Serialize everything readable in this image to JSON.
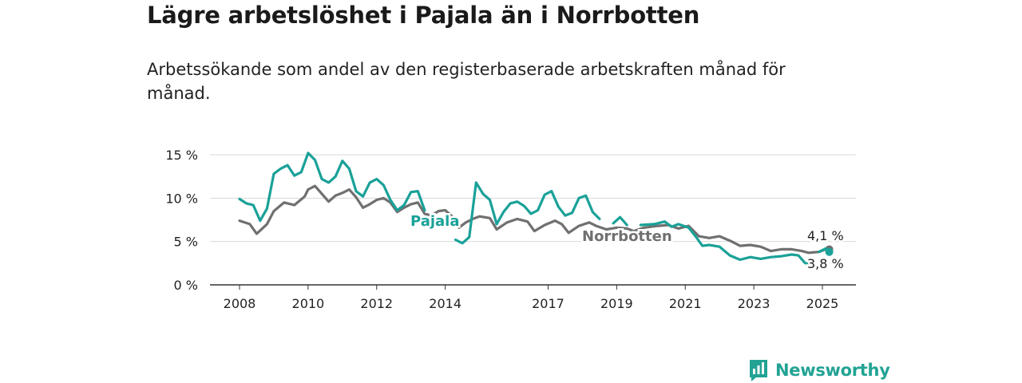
{
  "title": "Lägre arbetslöshet i Pajala än i Norrbotten",
  "subtitle": "Arbetssökande som andel av den registerbaserade arbetskraften månad för månad.",
  "brand": {
    "name": "Newsworthy",
    "color": "#22a394"
  },
  "chart_data": {
    "type": "line",
    "title": "",
    "xlabel": "",
    "ylabel": "",
    "x_ticks": [
      2008,
      2010,
      2012,
      2014,
      2017,
      2019,
      2021,
      2023,
      2025
    ],
    "x_tick_positions": [
      2008.0,
      2010.0,
      2012.0,
      2014.0,
      2017.0,
      2019.0,
      2021.0,
      2023.0,
      2025.0
    ],
    "y_ticks": [
      0,
      5,
      10,
      15
    ],
    "y_tick_labels": [
      "0 %",
      "5 %",
      "10 %",
      "15 %"
    ],
    "ylim": [
      0,
      15
    ],
    "xlim": [
      2007.2,
      2026.0
    ],
    "grid": true,
    "legend": "inline labels",
    "series": [
      {
        "name": "Pajala",
        "color": "#1aa198",
        "end_label": "3,8 %",
        "points": [
          [
            2008.0,
            9.9
          ],
          [
            2008.2,
            9.4
          ],
          [
            2008.4,
            9.2
          ],
          [
            2008.6,
            7.4
          ],
          [
            2008.8,
            8.8
          ],
          [
            2009.0,
            12.8
          ],
          [
            2009.2,
            13.4
          ],
          [
            2009.4,
            13.8
          ],
          [
            2009.6,
            12.6
          ],
          [
            2009.8,
            13.0
          ],
          [
            2010.0,
            15.2
          ],
          [
            2010.2,
            14.4
          ],
          [
            2010.4,
            12.2
          ],
          [
            2010.6,
            11.8
          ],
          [
            2010.8,
            12.5
          ],
          [
            2011.0,
            14.3
          ],
          [
            2011.2,
            13.4
          ],
          [
            2011.4,
            10.8
          ],
          [
            2011.6,
            10.2
          ],
          [
            2011.8,
            11.8
          ],
          [
            2012.0,
            12.2
          ],
          [
            2012.2,
            11.5
          ],
          [
            2012.4,
            9.8
          ],
          [
            2012.6,
            8.6
          ],
          [
            2012.8,
            9.2
          ],
          [
            2013.0,
            10.7
          ],
          [
            2013.2,
            10.8
          ],
          [
            2013.4,
            8.6
          ],
          [
            null,
            null
          ],
          [
            2014.3,
            5.2
          ],
          [
            2014.5,
            4.8
          ],
          [
            2014.7,
            5.5
          ],
          [
            2014.9,
            11.8
          ],
          [
            2015.1,
            10.5
          ],
          [
            2015.3,
            9.8
          ],
          [
            2015.5,
            7.0
          ],
          [
            2015.7,
            8.4
          ],
          [
            2015.9,
            9.4
          ],
          [
            2016.1,
            9.6
          ],
          [
            2016.3,
            9.1
          ],
          [
            2016.5,
            8.2
          ],
          [
            2016.7,
            8.6
          ],
          [
            2016.9,
            10.4
          ],
          [
            2017.1,
            10.8
          ],
          [
            2017.3,
            9.0
          ],
          [
            2017.5,
            8.0
          ],
          [
            2017.7,
            8.3
          ],
          [
            2017.9,
            10.0
          ],
          [
            2018.1,
            10.3
          ],
          [
            2018.3,
            8.4
          ],
          [
            2018.5,
            7.6
          ],
          [
            null,
            null
          ],
          [
            2018.9,
            7.1
          ],
          [
            2019.1,
            7.8
          ],
          [
            2019.3,
            6.9
          ],
          [
            null,
            null
          ],
          [
            2019.7,
            6.9
          ],
          [
            2020.1,
            7.0
          ],
          [
            2020.4,
            7.3
          ],
          [
            2020.6,
            6.7
          ],
          [
            2020.8,
            7.0
          ],
          [
            2021.1,
            6.6
          ],
          [
            2021.3,
            5.6
          ],
          [
            2021.5,
            4.5
          ],
          [
            2021.7,
            4.6
          ],
          [
            2022.0,
            4.4
          ],
          [
            2022.3,
            3.4
          ],
          [
            2022.6,
            2.9
          ],
          [
            2022.9,
            3.2
          ],
          [
            2023.2,
            3.0
          ],
          [
            2023.5,
            3.2
          ],
          [
            2023.8,
            3.3
          ],
          [
            2024.1,
            3.5
          ],
          [
            2024.3,
            3.4
          ],
          [
            2024.5,
            2.5
          ],
          [
            2024.7,
            2.4
          ],
          [
            null,
            null
          ],
          [
            2024.9,
            3.8
          ],
          [
            2025.1,
            4.2
          ],
          [
            2025.2,
            3.8
          ]
        ]
      },
      {
        "name": "Norrbotten",
        "color": "#707070",
        "end_label": "4,1 %",
        "points": [
          [
            2008.0,
            7.4
          ],
          [
            2008.3,
            7.0
          ],
          [
            2008.5,
            5.9
          ],
          [
            2008.8,
            7.0
          ],
          [
            2009.0,
            8.5
          ],
          [
            2009.3,
            9.5
          ],
          [
            2009.6,
            9.2
          ],
          [
            2009.9,
            10.2
          ],
          [
            2010.0,
            11.0
          ],
          [
            2010.2,
            11.4
          ],
          [
            2010.4,
            10.5
          ],
          [
            2010.6,
            9.6
          ],
          [
            2010.8,
            10.3
          ],
          [
            2011.0,
            10.6
          ],
          [
            2011.2,
            11.0
          ],
          [
            2011.4,
            10.1
          ],
          [
            2011.6,
            8.9
          ],
          [
            2011.8,
            9.3
          ],
          [
            2012.0,
            9.8
          ],
          [
            2012.2,
            10.0
          ],
          [
            2012.4,
            9.5
          ],
          [
            2012.6,
            8.4
          ],
          [
            2012.8,
            8.9
          ],
          [
            2013.0,
            9.3
          ],
          [
            2013.2,
            9.5
          ],
          [
            2013.4,
            8.2
          ],
          [
            2013.6,
            8.0
          ],
          [
            2013.8,
            8.5
          ],
          [
            2014.0,
            8.6
          ],
          [
            2014.2,
            7.9
          ],
          [
            2014.4,
            6.6
          ],
          [
            2014.6,
            7.2
          ],
          [
            2014.8,
            7.6
          ],
          [
            2015.0,
            7.9
          ],
          [
            2015.3,
            7.7
          ],
          [
            2015.5,
            6.4
          ],
          [
            2015.8,
            7.2
          ],
          [
            2016.1,
            7.6
          ],
          [
            2016.4,
            7.3
          ],
          [
            2016.6,
            6.2
          ],
          [
            2016.9,
            6.9
          ],
          [
            2017.2,
            7.4
          ],
          [
            2017.4,
            7.0
          ],
          [
            2017.6,
            6.0
          ],
          [
            2017.9,
            6.8
          ],
          [
            2018.2,
            7.2
          ],
          [
            2018.4,
            6.8
          ],
          [
            2018.7,
            6.4
          ],
          [
            2019.0,
            6.6
          ],
          [
            2019.3,
            6.5
          ],
          [
            2019.5,
            6.2
          ],
          [
            2019.8,
            6.6
          ],
          [
            2020.2,
            6.8
          ],
          [
            2020.5,
            6.9
          ],
          [
            2020.8,
            6.5
          ],
          [
            2021.1,
            6.8
          ],
          [
            2021.4,
            5.6
          ],
          [
            2021.7,
            5.4
          ],
          [
            2022.0,
            5.6
          ],
          [
            2022.3,
            5.1
          ],
          [
            2022.6,
            4.5
          ],
          [
            2022.9,
            4.6
          ],
          [
            2023.2,
            4.4
          ],
          [
            2023.5,
            3.9
          ],
          [
            2023.8,
            4.1
          ],
          [
            2024.1,
            4.1
          ],
          [
            2024.4,
            3.9
          ],
          [
            2024.6,
            3.7
          ],
          [
            2024.9,
            3.8
          ],
          [
            2025.1,
            4.1
          ],
          [
            2025.2,
            4.1
          ]
        ]
      }
    ],
    "annotations": [
      {
        "text": "Pajala",
        "series": "Pajala"
      },
      {
        "text": "Norrbotten",
        "series": "Norrbotten"
      },
      {
        "text": "4,1 %",
        "series": "Norrbotten"
      },
      {
        "text": "3,8 %",
        "series": "Pajala"
      }
    ]
  }
}
